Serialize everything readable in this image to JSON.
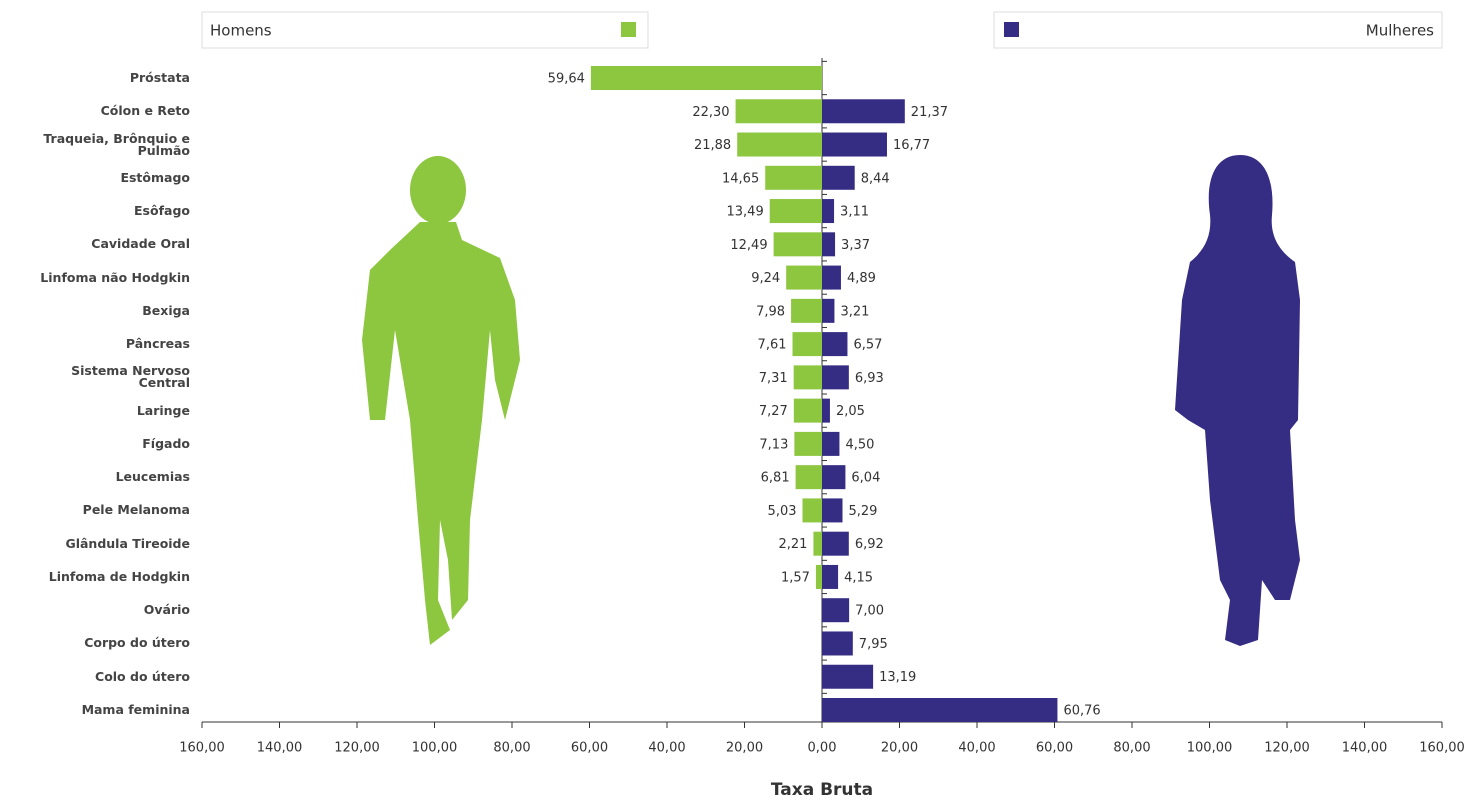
{
  "chart_data": {
    "type": "butterfly",
    "xlabel": "Taxa Bruta",
    "categories": [
      "Próstata",
      "Cólon e Reto",
      "Traqueia, Brônquio e\nPulmão",
      "Estômago",
      "Esôfago",
      "Cavidade Oral",
      "Linfoma não Hodgkin",
      "Bexiga",
      "Pâncreas",
      "Sistema Nervoso\nCentral",
      "Laringe",
      "Fígado",
      "Leucemias",
      "Pele Melanoma",
      "Glândula Tireoide",
      "Linfoma de Hodgkin",
      "Ovário",
      "Corpo do útero",
      "Colo do útero",
      "Mama feminina"
    ],
    "series": [
      {
        "name": "Homens",
        "color": "#8dc63f",
        "side": "left",
        "values": [
          59.64,
          22.3,
          21.88,
          14.65,
          13.49,
          12.49,
          9.24,
          7.98,
          7.61,
          7.31,
          7.27,
          7.13,
          6.81,
          5.03,
          2.21,
          1.57,
          null,
          null,
          null,
          null
        ],
        "value_labels": [
          "59,64",
          "22,30",
          "21,88",
          "14,65",
          "13,49",
          "12,49",
          "9,24",
          "7,98",
          "7,61",
          "7,31",
          "7,27",
          "7,13",
          "6,81",
          "5,03",
          "2,21",
          "1,57",
          null,
          null,
          null,
          null
        ]
      },
      {
        "name": "Mulheres",
        "color": "#352c83",
        "side": "right",
        "values": [
          null,
          21.37,
          16.77,
          8.44,
          3.11,
          3.37,
          4.89,
          3.21,
          6.57,
          6.93,
          2.05,
          4.5,
          6.04,
          5.29,
          6.92,
          4.15,
          7.0,
          7.95,
          13.19,
          60.76
        ],
        "value_labels": [
          null,
          "21,37",
          "16,77",
          "8,44",
          "3,11",
          "3,37",
          "4,89",
          "3,21",
          "6,57",
          "6,93",
          "2,05",
          "4,50",
          "6,04",
          "5,29",
          "6,92",
          "4,15",
          "7,00",
          "7,95",
          "13,19",
          "60,76"
        ]
      }
    ],
    "xlim": [
      0,
      160
    ],
    "xticks": [
      {
        "value": 0,
        "label": "0,00"
      },
      {
        "value": 20,
        "label": "20,00"
      },
      {
        "value": 40,
        "label": "40,00"
      },
      {
        "value": 60,
        "label": "60,00"
      },
      {
        "value": 80,
        "label": "80,00"
      },
      {
        "value": 100,
        "label": "100,00"
      },
      {
        "value": 120,
        "label": "120,00"
      },
      {
        "value": 140,
        "label": "140,00"
      },
      {
        "value": 160,
        "label": "160,00"
      }
    ]
  }
}
